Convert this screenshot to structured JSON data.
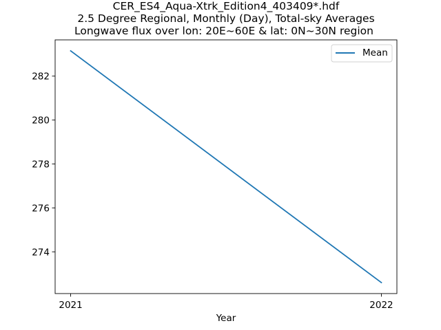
{
  "chart_data": {
    "type": "line",
    "title_lines": [
      "CER_ES4_Aqua-Xtrk_Edition4_403409*.hdf",
      "2.5 Degree Regional, Monthly (Day), Total-sky Averages",
      "Longwave flux over lon: 20E~60E & lat: 0N~30N region"
    ],
    "xlabel": "Year",
    "ylabel": "",
    "x": [
      2021,
      2022
    ],
    "x_tick_labels": [
      "2021",
      "2022"
    ],
    "series": [
      {
        "name": "Mean",
        "values": [
          283.15,
          272.6
        ],
        "color": "#1f77b4"
      }
    ],
    "xlim": [
      2020.95,
      2022.05
    ],
    "ylim": [
      272.1,
      283.65
    ],
    "y_ticks": [
      274,
      276,
      278,
      280,
      282
    ],
    "y_tick_labels": [
      "274",
      "276",
      "278",
      "280",
      "282"
    ],
    "grid": false,
    "legend_position": "top-right"
  }
}
